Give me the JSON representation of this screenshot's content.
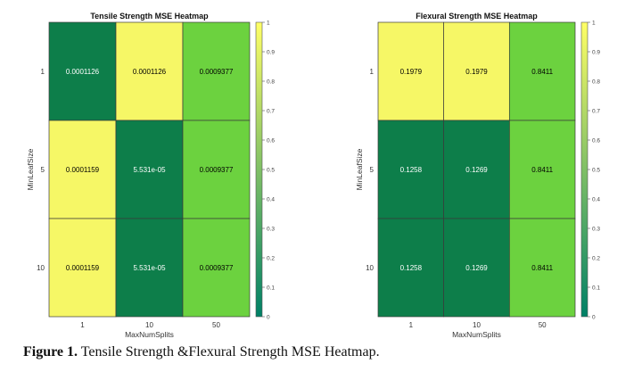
{
  "chart_data": [
    {
      "type": "heatmap",
      "title": "Tensile Strength MSE Heatmap",
      "xlabel": "MaxNumSplits",
      "ylabel": "MinLeafSize",
      "x": [
        "1",
        "10",
        "50"
      ],
      "y": [
        "1",
        "5",
        "10"
      ],
      "values": [
        [
          0.0001126,
          0.0001126,
          0.0009377
        ],
        [
          0.0001159,
          5.531e-05,
          0.0009377
        ],
        [
          0.0001159,
          5.531e-05,
          0.0009377
        ]
      ],
      "labels": [
        [
          "0.0001126",
          "0.0001126",
          "0.0009377"
        ],
        [
          "0.0001159",
          "5.531e-05",
          "0.0009377"
        ],
        [
          "0.0001159",
          "5.531e-05",
          "0.0009377"
        ]
      ],
      "cell_colors": [
        [
          "#0d7e4a",
          "#f6f766",
          "#6cd23f"
        ],
        [
          "#f6f766",
          "#0d7e4a",
          "#6cd23f"
        ],
        [
          "#f6f766",
          "#0d7e4a",
          "#6cd23f"
        ]
      ],
      "colorbar": {
        "range": [
          0,
          1
        ],
        "ticks": [
          "0",
          "0.1",
          "0.2",
          "0.3",
          "0.4",
          "0.5",
          "0.6",
          "0.7",
          "0.8",
          "0.9",
          "1"
        ],
        "colormap": "summer"
      }
    },
    {
      "type": "heatmap",
      "title": "Flexural Strength MSE Heatmap",
      "xlabel": "MaxNumSplits",
      "ylabel": "MinLeafSize",
      "x": [
        "1",
        "10",
        "50"
      ],
      "y": [
        "1",
        "5",
        "10"
      ],
      "values": [
        [
          0.1979,
          0.1979,
          0.8411
        ],
        [
          0.1258,
          0.1269,
          0.8411
        ],
        [
          0.1258,
          0.1269,
          0.8411
        ]
      ],
      "labels": [
        [
          "0.1979",
          "0.1979",
          "0.8411"
        ],
        [
          "0.1258",
          "0.1269",
          "0.8411"
        ],
        [
          "0.1258",
          "0.1269",
          "0.8411"
        ]
      ],
      "cell_colors": [
        [
          "#f6f766",
          "#f6f766",
          "#6cd23f"
        ],
        [
          "#0d7e4a",
          "#0d7e4a",
          "#6cd23f"
        ],
        [
          "#0d7e4a",
          "#0d7e4a",
          "#6cd23f"
        ]
      ],
      "colorbar": {
        "range": [
          0,
          1
        ],
        "ticks": [
          "0",
          "0.1",
          "0.2",
          "0.3",
          "0.4",
          "0.5",
          "0.6",
          "0.7",
          "0.8",
          "0.9",
          "1"
        ],
        "colormap": "summer"
      }
    }
  ],
  "caption": {
    "label": "Figure 1.",
    "text": " Tensile Strength &Flexural Strength MSE Heatmap."
  },
  "colors": {
    "dark_text": "#ffffff",
    "light_text": "#000000",
    "colormap_start": "#008066",
    "colormap_end": "#ffff66"
  }
}
